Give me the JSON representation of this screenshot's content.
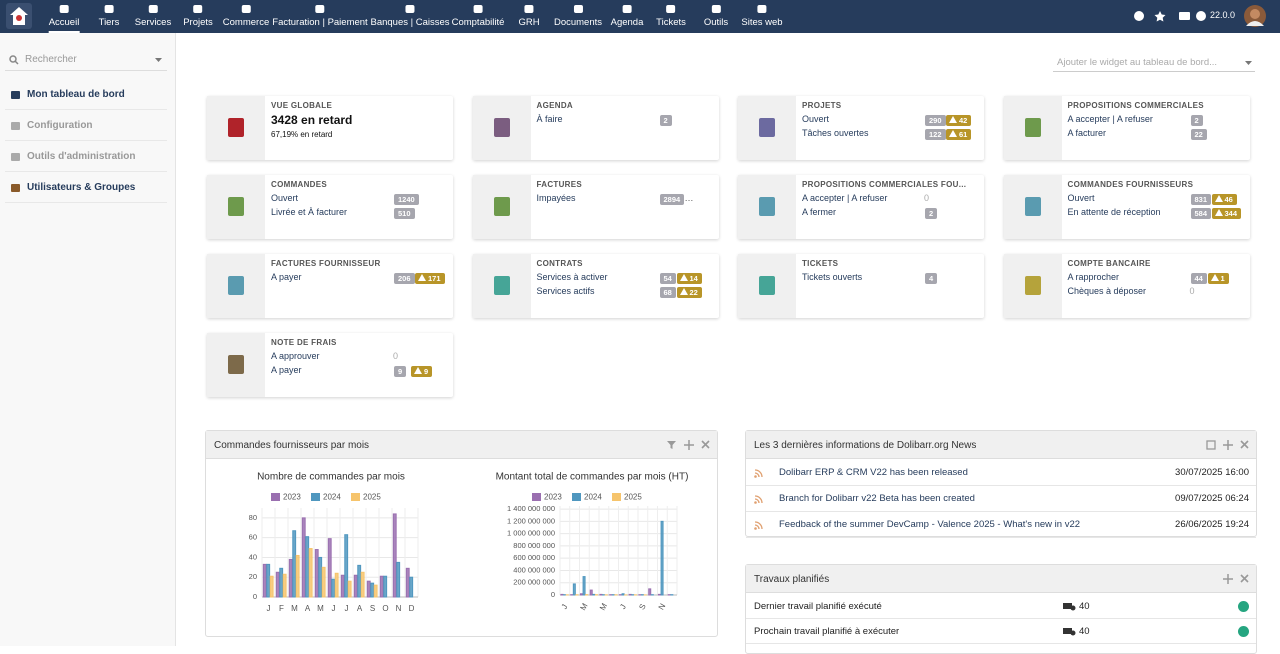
{
  "nav": {
    "items": [
      "Accueil",
      "Tiers",
      "Services",
      "Projets",
      "Commerce",
      "Facturation | Paiement",
      "Banques | Caisses",
      "Comptabilité",
      "GRH",
      "Documents",
      "Agenda",
      "Tickets",
      "Outils",
      "Sites web"
    ],
    "version": "22.0.0"
  },
  "sidebar": {
    "search": "Rechercher",
    "items": [
      "Mon tableau de bord",
      "Configuration",
      "Outils d'administration",
      "Utilisateurs & Groupes"
    ]
  },
  "widget_select": "Ajouter le widget au tableau de bord...",
  "overview": {
    "title": "VUE GLOBALE",
    "big": "3428 en retard",
    "sub": "67,19% en retard"
  },
  "boxes": [
    {
      "title": "AGENDA",
      "rows": [
        {
          "label": "À faire",
          "count": 2
        }
      ]
    },
    {
      "title": "PROJETS",
      "rows": [
        {
          "label": "Ouvert",
          "count": 290,
          "late": 42
        },
        {
          "label": "Tâches ouvertes",
          "count": 122,
          "late": 61
        }
      ]
    },
    {
      "title": "PROPOSITIONS COMMERCIALES",
      "rows": [
        {
          "label": "A accepter | A refuser",
          "count": 2
        },
        {
          "label": "A facturer",
          "count": 22
        }
      ]
    },
    {
      "title": "COMMANDES",
      "rows": [
        {
          "label": "Ouvert",
          "count": 1240
        },
        {
          "label": "Livrée et À facturer",
          "count": 510
        }
      ]
    },
    {
      "title": "FACTURES",
      "rows": [
        {
          "label": "Impayées",
          "count": 2894,
          "extra": "…"
        }
      ]
    },
    {
      "title": "PROPOSITIONS COMMERCIALES FOU...",
      "rows": [
        {
          "label": "A accepter | A refuser",
          "count": 0
        },
        {
          "label": "A fermer",
          "count": 2
        }
      ]
    },
    {
      "title": "COMMANDES FOURNISSEURS",
      "rows": [
        {
          "label": "Ouvert",
          "count": 831,
          "late": 46
        },
        {
          "label": "En attente de réception",
          "count": 584,
          "late": 344
        }
      ]
    },
    {
      "title": "FACTURES FOURNISSEUR",
      "rows": [
        {
          "label": "A payer",
          "count": 206,
          "late": 171
        }
      ]
    },
    {
      "title": "CONTRATS",
      "rows": [
        {
          "label": "Services à activer",
          "count": 54,
          "late": 14
        },
        {
          "label": "Services actifs",
          "count": 68,
          "late": 22
        }
      ]
    },
    {
      "title": "TICKETS",
      "rows": [
        {
          "label": "Tickets ouverts",
          "count": 4
        }
      ]
    },
    {
      "title": "COMPTE BANCAIRE",
      "rows": [
        {
          "label": "A rapprocher",
          "count": 44,
          "late": 1
        },
        {
          "label": "Chèques à déposer",
          "count": 0
        }
      ]
    },
    {
      "title": "NOTE DE FRAIS",
      "rows": [
        {
          "label": "A approuver",
          "count": 0
        },
        {
          "label": "A payer",
          "count": 9,
          "late": 9
        }
      ]
    }
  ],
  "chart_panel": {
    "title": "Commandes fournisseurs par mois"
  },
  "chart_data": [
    {
      "type": "bar",
      "title": "Nombre de commandes par mois",
      "categories": [
        "J",
        "F",
        "M",
        "A",
        "M",
        "J",
        "J",
        "A",
        "S",
        "O",
        "N",
        "D"
      ],
      "series": [
        {
          "name": "2023",
          "color": "#9a6fb0",
          "values": [
            33,
            25,
            38,
            80,
            48,
            59,
            22,
            22,
            16,
            21,
            84,
            29
          ]
        },
        {
          "name": "2024",
          "color": "#4f97bf",
          "values": [
            33,
            29,
            67,
            61,
            40,
            18,
            63,
            32,
            14,
            21,
            35,
            20
          ]
        },
        {
          "name": "2025",
          "color": "#f6c46c",
          "values": [
            21,
            23,
            42,
            49,
            30,
            24,
            16,
            25,
            12,
            null,
            null,
            null
          ]
        }
      ],
      "ylim": [
        0,
        90
      ],
      "yticks": [
        0,
        20,
        40,
        60,
        80
      ],
      "grid": true
    },
    {
      "type": "bar",
      "title": "Montant total de commandes par mois (HT)",
      "categories": [
        "J",
        null,
        "M",
        null,
        "M",
        null,
        "J",
        null,
        "S",
        null,
        "N",
        null
      ],
      "series": [
        {
          "name": "2023",
          "color": "#9a6fb0",
          "values": [
            10000000,
            5000000,
            20000000,
            80000000,
            10000000,
            5000000,
            5000000,
            10000000,
            5000000,
            100000000,
            10000000,
            5000000
          ]
        },
        {
          "name": "2024",
          "color": "#4f97bf",
          "values": [
            5000000,
            180000000,
            300000000,
            10000000,
            5000000,
            5000000,
            20000000,
            5000000,
            5000000,
            5000000,
            1200000000,
            5000000
          ]
        },
        {
          "name": "2025",
          "color": "#f6c46c",
          "values": [
            3000000,
            4000000,
            6000000,
            5000000,
            3000000,
            4000000,
            2000000,
            3000000,
            2000000,
            null,
            null,
            null
          ]
        }
      ],
      "ylim": [
        0,
        1450000000
      ],
      "yticks": [
        0,
        {
          "value": 200000000,
          "label": "200 000 000"
        },
        {
          "value": 400000000,
          "label": "400 000 000"
        },
        {
          "value": 600000000,
          "label": "600 000 000"
        },
        {
          "value": 800000000,
          "label": "800 000 000"
        },
        {
          "value": 1000000000,
          "label": "1 000 000 000"
        },
        {
          "value": 1200000000,
          "label": "1 200 000 000"
        },
        {
          "value": 1400000000,
          "label": "1 400 000 000"
        }
      ],
      "grid": true
    }
  ],
  "news": {
    "title": "Les 3 dernières informations de Dolibarr.org News",
    "rows": [
      {
        "label": "Dolibarr ERP & CRM V22 has been released",
        "date": "30/07/2025 16:00"
      },
      {
        "label": "Branch for Dolibarr v22 Beta has been created",
        "date": "09/07/2025 06:24"
      },
      {
        "label": "Feedback of the summer DevCamp - Valence 2025 - What's new in v22",
        "date": "26/06/2025 19:24"
      }
    ]
  },
  "jobs": {
    "title": "Travaux planifiés",
    "rows": [
      {
        "label": "Dernier travail planifié exécuté",
        "value": 40
      },
      {
        "label": "Prochain travail planifié à exécuter",
        "value": 40
      }
    ]
  }
}
